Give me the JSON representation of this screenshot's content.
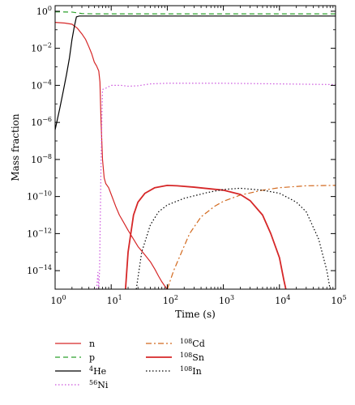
{
  "chart_data": {
    "type": "line",
    "xlabel": "Time (s)",
    "ylabel": "Mass fraction",
    "xscale": "log",
    "yscale": "log",
    "xlim": [
      1,
      100000
    ],
    "ylim": [
      1e-15,
      2
    ],
    "grid": false,
    "legend_position": "bottom",
    "x_ticks": [
      {
        "value": 1,
        "base": "10",
        "exp": "0"
      },
      {
        "value": 10,
        "base": "10",
        "exp": "1"
      },
      {
        "value": 100,
        "base": "10",
        "exp": "2"
      },
      {
        "value": 1000,
        "base": "10",
        "exp": "3"
      },
      {
        "value": 10000,
        "base": "10",
        "exp": "4"
      },
      {
        "value": 100000,
        "base": "10",
        "exp": "5"
      }
    ],
    "y_ticks": [
      {
        "value": 1,
        "base": "10",
        "exp": "0"
      },
      {
        "value": 0.01,
        "base": "10",
        "exp": "−2"
      },
      {
        "value": 0.0001,
        "base": "10",
        "exp": "−4"
      },
      {
        "value": 1e-06,
        "base": "10",
        "exp": "−6"
      },
      {
        "value": 1e-08,
        "base": "10",
        "exp": "−8"
      },
      {
        "value": 1e-10,
        "base": "10",
        "exp": "−10"
      },
      {
        "value": 1e-12,
        "base": "10",
        "exp": "−12"
      },
      {
        "value": 1e-14,
        "base": "10",
        "exp": "−14"
      }
    ],
    "series": [
      {
        "id": "n",
        "label": "n",
        "sup": "",
        "color": "#d62728",
        "dash": "",
        "width": 1.2,
        "points": [
          [
            1,
            0.25
          ],
          [
            1.5,
            0.23
          ],
          [
            2,
            0.2
          ],
          [
            2.5,
            0.12
          ],
          [
            3,
            0.06
          ],
          [
            3.5,
            0.03
          ],
          [
            4,
            0.012
          ],
          [
            4.5,
            0.005
          ],
          [
            5,
            0.0018
          ],
          [
            5.5,
            0.0011
          ],
          [
            6,
            0.0006
          ],
          [
            6.3,
            0.00015
          ],
          [
            6.6,
            1e-06
          ],
          [
            7,
            1e-08
          ],
          [
            7.5,
            1e-09
          ],
          [
            8,
            5e-10
          ],
          [
            9,
            3e-10
          ],
          [
            10,
            1.3e-10
          ],
          [
            12,
            3e-11
          ],
          [
            14,
            1e-11
          ],
          [
            16,
            5e-12
          ],
          [
            20,
            1.5e-12
          ],
          [
            25,
            5e-13
          ],
          [
            30,
            2e-13
          ],
          [
            40,
            7e-14
          ],
          [
            50,
            3e-14
          ],
          [
            60,
            1.2e-14
          ],
          [
            70,
            5e-15
          ],
          [
            80,
            2.5e-15
          ],
          [
            90,
            1.5e-15
          ],
          [
            100,
            1e-15
          ]
        ]
      },
      {
        "id": "p",
        "label": "p",
        "sup": "",
        "color": "#2ca02c",
        "dash": "6,4",
        "width": 1.2,
        "points": [
          [
            1,
            0.93
          ],
          [
            2,
            0.9
          ],
          [
            3,
            0.75
          ],
          [
            5,
            0.72
          ],
          [
            10,
            0.72
          ],
          [
            100,
            0.72
          ],
          [
            1000,
            0.72
          ],
          [
            10000,
            0.72
          ],
          [
            100000,
            0.72
          ]
        ]
      },
      {
        "id": "he4",
        "label": "He",
        "sup": "4",
        "color": "#000000",
        "dash": "",
        "width": 1.2,
        "points": [
          [
            1,
            4e-07
          ],
          [
            1.2,
            5e-06
          ],
          [
            1.4,
            5e-05
          ],
          [
            1.6,
            0.0004
          ],
          [
            1.8,
            0.003
          ],
          [
            2,
            0.03
          ],
          [
            2.2,
            0.15
          ],
          [
            2.4,
            0.5
          ],
          [
            2.7,
            0.55
          ],
          [
            3,
            0.55
          ],
          [
            5,
            0.55
          ],
          [
            10,
            0.55
          ],
          [
            100,
            0.55
          ],
          [
            1000,
            0.55
          ],
          [
            10000,
            0.55
          ],
          [
            100000,
            0.55
          ]
        ]
      },
      {
        "id": "ni56",
        "label": "Ni",
        "sup": "56",
        "color": "#cc55dd",
        "dash": "1.5,2.5",
        "width": 1.2,
        "points": [
          [
            5.5,
            1e-15
          ],
          [
            5.8,
            8e-15
          ],
          [
            6,
            1e-15
          ],
          [
            6.2,
            1e-14
          ],
          [
            6.4,
            1e-11
          ],
          [
            6.6,
            1e-08
          ],
          [
            6.8,
            1e-06
          ],
          [
            7,
            6e-05
          ],
          [
            8,
            7e-05
          ],
          [
            10,
            0.0001
          ],
          [
            15,
            0.0001
          ],
          [
            20,
            9e-05
          ],
          [
            30,
            9.5e-05
          ],
          [
            50,
            0.00012
          ],
          [
            100,
            0.00013
          ],
          [
            1000,
            0.00013
          ],
          [
            10000,
            0.00012
          ],
          [
            100000,
            0.00011
          ]
        ]
      },
      {
        "id": "cd108",
        "label": "Cd",
        "sup": "108",
        "color": "#d2691e",
        "dash": "7,3,2,3",
        "width": 1.2,
        "points": [
          [
            100,
            1e-15
          ],
          [
            130,
            1e-14
          ],
          [
            180,
            1e-13
          ],
          [
            250,
            1e-12
          ],
          [
            400,
            8e-12
          ],
          [
            700,
            3e-11
          ],
          [
            1000,
            5.5e-11
          ],
          [
            2000,
            1.2e-10
          ],
          [
            5000,
            2.2e-10
          ],
          [
            10000,
            3e-10
          ],
          [
            30000,
            3.8e-10
          ],
          [
            100000,
            4e-10
          ]
        ]
      },
      {
        "id": "sn108",
        "label": "Sn",
        "sup": "108",
        "color": "#d62728",
        "dash": "",
        "width": 1.8,
        "points": [
          [
            18,
            1e-15
          ],
          [
            20,
            1e-13
          ],
          [
            25,
            1e-11
          ],
          [
            30,
            5e-11
          ],
          [
            40,
            1.5e-10
          ],
          [
            60,
            3e-10
          ],
          [
            100,
            4e-10
          ],
          [
            150,
            3.8e-10
          ],
          [
            300,
            3.2e-10
          ],
          [
            1000,
            2.2e-10
          ],
          [
            2000,
            1.3e-10
          ],
          [
            3000,
            6e-11
          ],
          [
            5000,
            1e-11
          ],
          [
            7000,
            1e-12
          ],
          [
            10000,
            5e-14
          ],
          [
            12000,
            3e-15
          ],
          [
            13000,
            1e-15
          ]
        ]
      },
      {
        "id": "in108",
        "label": "In",
        "sup": "108",
        "color": "#000000",
        "dash": "1.5,2.5",
        "width": 1.2,
        "points": [
          [
            28,
            1e-15
          ],
          [
            35,
            1e-13
          ],
          [
            50,
            3e-12
          ],
          [
            70,
            1.5e-11
          ],
          [
            100,
            3.5e-11
          ],
          [
            200,
            8e-11
          ],
          [
            500,
            1.6e-10
          ],
          [
            1000,
            2.4e-10
          ],
          [
            2000,
            2.8e-10
          ],
          [
            5000,
            2.2e-10
          ],
          [
            10000,
            1.5e-10
          ],
          [
            20000,
            5e-11
          ],
          [
            30000,
            1.5e-11
          ],
          [
            50000,
            5e-13
          ],
          [
            70000,
            1e-14
          ],
          [
            80000,
            1e-15
          ]
        ]
      }
    ],
    "legend_columns": [
      [
        "n",
        "p",
        "he4",
        "ni56"
      ],
      [
        "cd108",
        "sn108",
        "in108"
      ]
    ]
  }
}
